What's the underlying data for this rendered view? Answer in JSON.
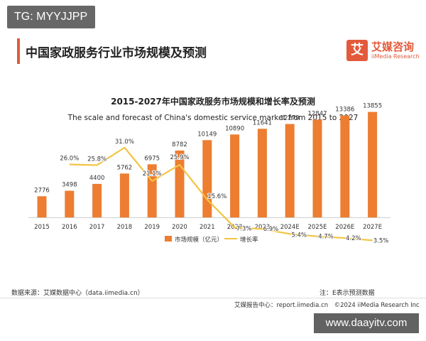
{
  "badge": {
    "text": "TG: MYYJJPP"
  },
  "header": {
    "title": "中国家政服务行业市场规模及预测",
    "logo_mark": "艾",
    "logo_cn": "艾媒咨询",
    "logo_en": "iiMedia Research"
  },
  "chart_data": {
    "type": "bar",
    "title": "2015-2027年中国家政服务市场规模和增长率及预测",
    "subtitle": "The scale and forecast of China's domestic service market from 2015 to 2027",
    "categories": [
      "2015",
      "2016",
      "2017",
      "2018",
      "2019",
      "2020",
      "2021",
      "2022",
      "2023",
      "2024E",
      "2025E",
      "2026E",
      "2027E"
    ],
    "series": [
      {
        "name": "市场规模（亿元）",
        "type": "bar",
        "color": "#ed7d31",
        "values": [
          2776,
          3498,
          4400,
          5762,
          6975,
          8782,
          10149,
          10890,
          11641,
          12270,
          12847,
          13386,
          13855
        ],
        "labels": [
          "2776",
          "3498",
          "4400",
          "5762",
          "6975",
          "8782",
          "10149",
          "10890",
          "11641",
          "12270",
          "12847",
          "13386",
          "13855"
        ]
      },
      {
        "name": "增长率",
        "type": "line",
        "color": "#f2c443",
        "values": [
          null,
          26.0,
          25.8,
          31.0,
          21.1,
          25.9,
          15.6,
          7.3,
          6.9,
          5.4,
          4.7,
          4.2,
          3.5
        ],
        "labels": [
          "",
          "26.0%",
          "25.8%",
          "31.0%",
          "21.1%",
          "25.9%",
          "15.6%",
          "7.3%",
          "6.9%",
          "5.4%",
          "4.7%",
          "4.2%",
          "3.5%"
        ]
      }
    ],
    "ylim_bar": [
      0,
      18000
    ],
    "ylim_line": [
      0,
      40
    ],
    "legend": "bottom-center",
    "grid": false
  },
  "footer": {
    "source": "数据来源：艾媒数据中心（data.iimedia.cn）",
    "note": "注：E表示预测数据",
    "credit": "艾媒报告中心：report.iimedia.cn　©2024 iiMedia Research Inc"
  },
  "watermark": {
    "text": "www.daayitv.com"
  }
}
